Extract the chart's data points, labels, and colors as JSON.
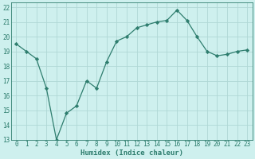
{
  "x": [
    0,
    1,
    2,
    3,
    4,
    5,
    6,
    7,
    8,
    9,
    10,
    11,
    12,
    13,
    14,
    15,
    16,
    17,
    18,
    19,
    20,
    21,
    22,
    23
  ],
  "y": [
    19.5,
    19.0,
    18.5,
    16.5,
    13.0,
    14.8,
    15.3,
    17.0,
    16.5,
    18.3,
    19.7,
    20.0,
    20.6,
    20.8,
    21.0,
    21.1,
    21.8,
    21.1,
    20.0,
    19.0,
    18.7,
    18.8,
    19.0,
    19.1
  ],
  "line_color": "#2e7d6e",
  "marker": "D",
  "marker_size": 2.2,
  "bg_color": "#cef0ee",
  "grid_color": "#b0d8d5",
  "xlabel": "Humidex (Indice chaleur)",
  "ylim": [
    13,
    22
  ],
  "xlim": [
    -0.5,
    23.5
  ],
  "yticks": [
    13,
    14,
    15,
    16,
    17,
    18,
    19,
    20,
    21,
    22
  ],
  "xticks": [
    0,
    1,
    2,
    3,
    4,
    5,
    6,
    7,
    8,
    9,
    10,
    11,
    12,
    13,
    14,
    15,
    16,
    17,
    18,
    19,
    20,
    21,
    22,
    23
  ],
  "tick_color": "#2e7d6e",
  "label_color": "#2e7d6e",
  "spine_color": "#2e7d6e",
  "tick_fontsize": 5.5,
  "xlabel_fontsize": 6.5
}
